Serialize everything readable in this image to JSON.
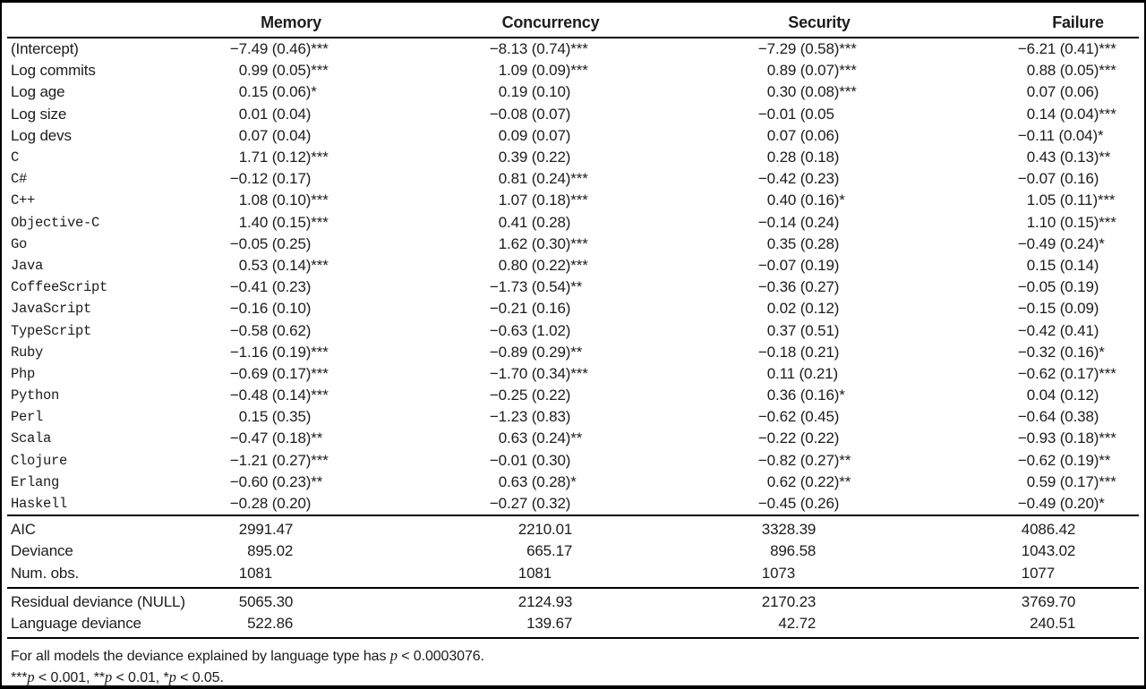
{
  "table": {
    "columns": [
      "Memory",
      "Concurrency",
      "Security",
      "Failure"
    ],
    "coef_rows": [
      {
        "label": "(Intercept)",
        "mono": false,
        "values": [
          "−7.49 (0.46)***",
          "−8.13 (0.74)***",
          "−7.29 (0.58)***",
          "−6.21 (0.41)***"
        ]
      },
      {
        "label": "Log commits",
        "mono": false,
        "values": [
          "0.99 (0.05)***",
          "1.09 (0.09)***",
          "0.89 (0.07)***",
          "0.88 (0.05)***"
        ]
      },
      {
        "label": "Log age",
        "mono": false,
        "values": [
          "0.15 (0.06)*",
          "0.19 (0.10)",
          "0.30 (0.08)***",
          "0.07 (0.06)"
        ]
      },
      {
        "label": "Log size",
        "mono": false,
        "values": [
          "0.01 (0.04)",
          "−0.08 (0.07)",
          "−0.01 (0.05",
          "0.14 (0.04)***"
        ]
      },
      {
        "label": "Log devs",
        "mono": false,
        "values": [
          "0.07 (0.04)",
          "0.09 (0.07)",
          "0.07 (0.06)",
          "−0.11 (0.04)*"
        ]
      },
      {
        "label": "C",
        "mono": true,
        "values": [
          "1.71 (0.12)***",
          "0.39 (0.22)",
          "0.28 (0.18)",
          "0.43 (0.13)**"
        ]
      },
      {
        "label": "C#",
        "mono": true,
        "values": [
          "−0.12 (0.17)",
          "0.81 (0.24)***",
          "−0.42 (0.23)",
          "−0.07 (0.16)"
        ]
      },
      {
        "label": "C++",
        "mono": true,
        "values": [
          "1.08 (0.10)***",
          "1.07 (0.18)***",
          "0.40 (0.16)*",
          "1.05 (0.11)***"
        ]
      },
      {
        "label": "Objective-C",
        "mono": true,
        "values": [
          "1.40 (0.15)***",
          "0.41 (0.28)",
          "−0.14 (0.24)",
          "1.10 (0.15)***"
        ]
      },
      {
        "label": "Go",
        "mono": true,
        "values": [
          "−0.05 (0.25)",
          "1.62 (0.30)***",
          "0.35 (0.28)",
          "−0.49 (0.24)*"
        ]
      },
      {
        "label": "Java",
        "mono": true,
        "values": [
          "0.53 (0.14)***",
          "0.80 (0.22)***",
          "−0.07 (0.19)",
          "0.15 (0.14)"
        ]
      },
      {
        "label": "CoffeeScript",
        "mono": true,
        "values": [
          "−0.41 (0.23)",
          "−1.73 (0.54)**",
          "−0.36 (0.27)",
          "−0.05 (0.19)"
        ]
      },
      {
        "label": "JavaScript",
        "mono": true,
        "values": [
          "−0.16 (0.10)",
          "−0.21 (0.16)",
          "0.02 (0.12)",
          "−0.15 (0.09)"
        ]
      },
      {
        "label": "TypeScript",
        "mono": true,
        "values": [
          "−0.58 (0.62)",
          "−0.63 (1.02)",
          "0.37 (0.51)",
          "−0.42 (0.41)"
        ]
      },
      {
        "label": "Ruby",
        "mono": true,
        "values": [
          "−1.16 (0.19)***",
          "−0.89 (0.29)**",
          "−0.18 (0.21)",
          "−0.32 (0.16)*"
        ]
      },
      {
        "label": "Php",
        "mono": true,
        "values": [
          "−0.69 (0.17)***",
          "−1.70 (0.34)***",
          "0.11 (0.21)",
          "−0.62 (0.17)***"
        ]
      },
      {
        "label": "Python",
        "mono": true,
        "values": [
          "−0.48 (0.14)***",
          "−0.25 (0.22)",
          "0.36 (0.16)*",
          "0.04 (0.12)"
        ]
      },
      {
        "label": "Perl",
        "mono": true,
        "values": [
          "0.15 (0.35)",
          "−1.23 (0.83)",
          "−0.62 (0.45)",
          "−0.64 (0.38)"
        ]
      },
      {
        "label": "Scala",
        "mono": true,
        "values": [
          "−0.47 (0.18)**",
          "0.63 (0.24)**",
          "−0.22 (0.22)",
          "−0.93 (0.18)***"
        ]
      },
      {
        "label": "Clojure",
        "mono": true,
        "values": [
          "−1.21 (0.27)***",
          "−0.01 (0.30)",
          "−0.82 (0.27)**",
          "−0.62 (0.19)**"
        ]
      },
      {
        "label": "Erlang",
        "mono": true,
        "values": [
          "−0.60 (0.23)**",
          "0.63 (0.28)*",
          "0.62 (0.22)**",
          "0.59 (0.17)***"
        ]
      },
      {
        "label": "Haskell",
        "mono": true,
        "values": [
          "−0.28 (0.20)",
          "−0.27 (0.32)",
          "−0.45 (0.26)",
          "−0.49 (0.20)*"
        ]
      }
    ],
    "summary_rows": [
      {
        "label": "AIC",
        "mono": false,
        "values": [
          "2991.47",
          "2210.01",
          "3328.39",
          "4086.42"
        ]
      },
      {
        "label": "Deviance",
        "mono": false,
        "values": [
          "895.02",
          "665.17",
          "896.58",
          "1043.02"
        ]
      },
      {
        "label": "Num. obs.",
        "mono": false,
        "values": [
          "1081",
          "1081",
          "1073",
          "1077"
        ]
      }
    ],
    "deviance_rows": [
      {
        "label": "Residual deviance (NULL)",
        "mono": false,
        "values": [
          "5065.30",
          "2124.93",
          "2170.23",
          "3769.70"
        ]
      },
      {
        "label": "Language deviance",
        "mono": false,
        "values": [
          "522.86",
          "139.67",
          "42.72",
          "240.51"
        ]
      }
    ],
    "footnotes": [
      [
        {
          "text": "For all models the deviance explained by language type has "
        },
        {
          "text": "p",
          "italic": true
        },
        {
          "text": " < 0.0003076."
        }
      ],
      [
        {
          "text": "***"
        },
        {
          "text": "p",
          "italic": true
        },
        {
          "text": " < 0.001, **"
        },
        {
          "text": "p",
          "italic": true
        },
        {
          "text": " < 0.01, *"
        },
        {
          "text": "p",
          "italic": true
        },
        {
          "text": " < 0.05."
        }
      ]
    ]
  }
}
